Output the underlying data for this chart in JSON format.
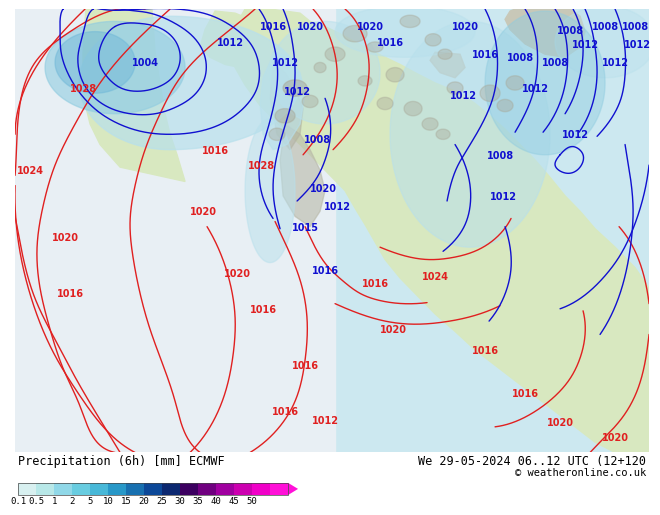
{
  "title_left": "Precipitation (6h) [mm] ECMWF",
  "title_right": "We 29-05-2024 06..12 UTC (12+120",
  "copyright": "© weatheronline.co.uk",
  "colorbar_labels": [
    "0.1",
    "0.5",
    "1",
    "2",
    "5",
    "10",
    "15",
    "20",
    "25",
    "30",
    "35",
    "40",
    "45",
    "50"
  ],
  "colorbar_colors": [
    "#d8f0f0",
    "#b8e8e8",
    "#90d8e8",
    "#68cce0",
    "#48b8d8",
    "#2898c8",
    "#1870b0",
    "#0c4898",
    "#0c2870",
    "#3c0060",
    "#700080",
    "#a000a0",
    "#cc00b0",
    "#f000c8",
    "#ff10d8"
  ],
  "ocean_color": "#b8dce8",
  "ocean_light": "#cce8f0",
  "land_color": "#d8e8c0",
  "land_gray": "#c8c8b8",
  "precip_light1": "#b8e0ec",
  "precip_light2": "#90cce0",
  "precip_med": "#70b8d8",
  "precip_dark": "#4090c0",
  "bg_pink": "#f0e8e8",
  "bg_light": "#e8f0f4",
  "font_color": "#000000",
  "title_fontsize": 8.5,
  "colorbar_triangle_color": "#ff10d8",
  "red_contour": "#e02020",
  "blue_contour": "#1010d0",
  "contour_lw": 1.0,
  "label_fontsize": 7.0,
  "cb_label_fontsize": 6.5
}
